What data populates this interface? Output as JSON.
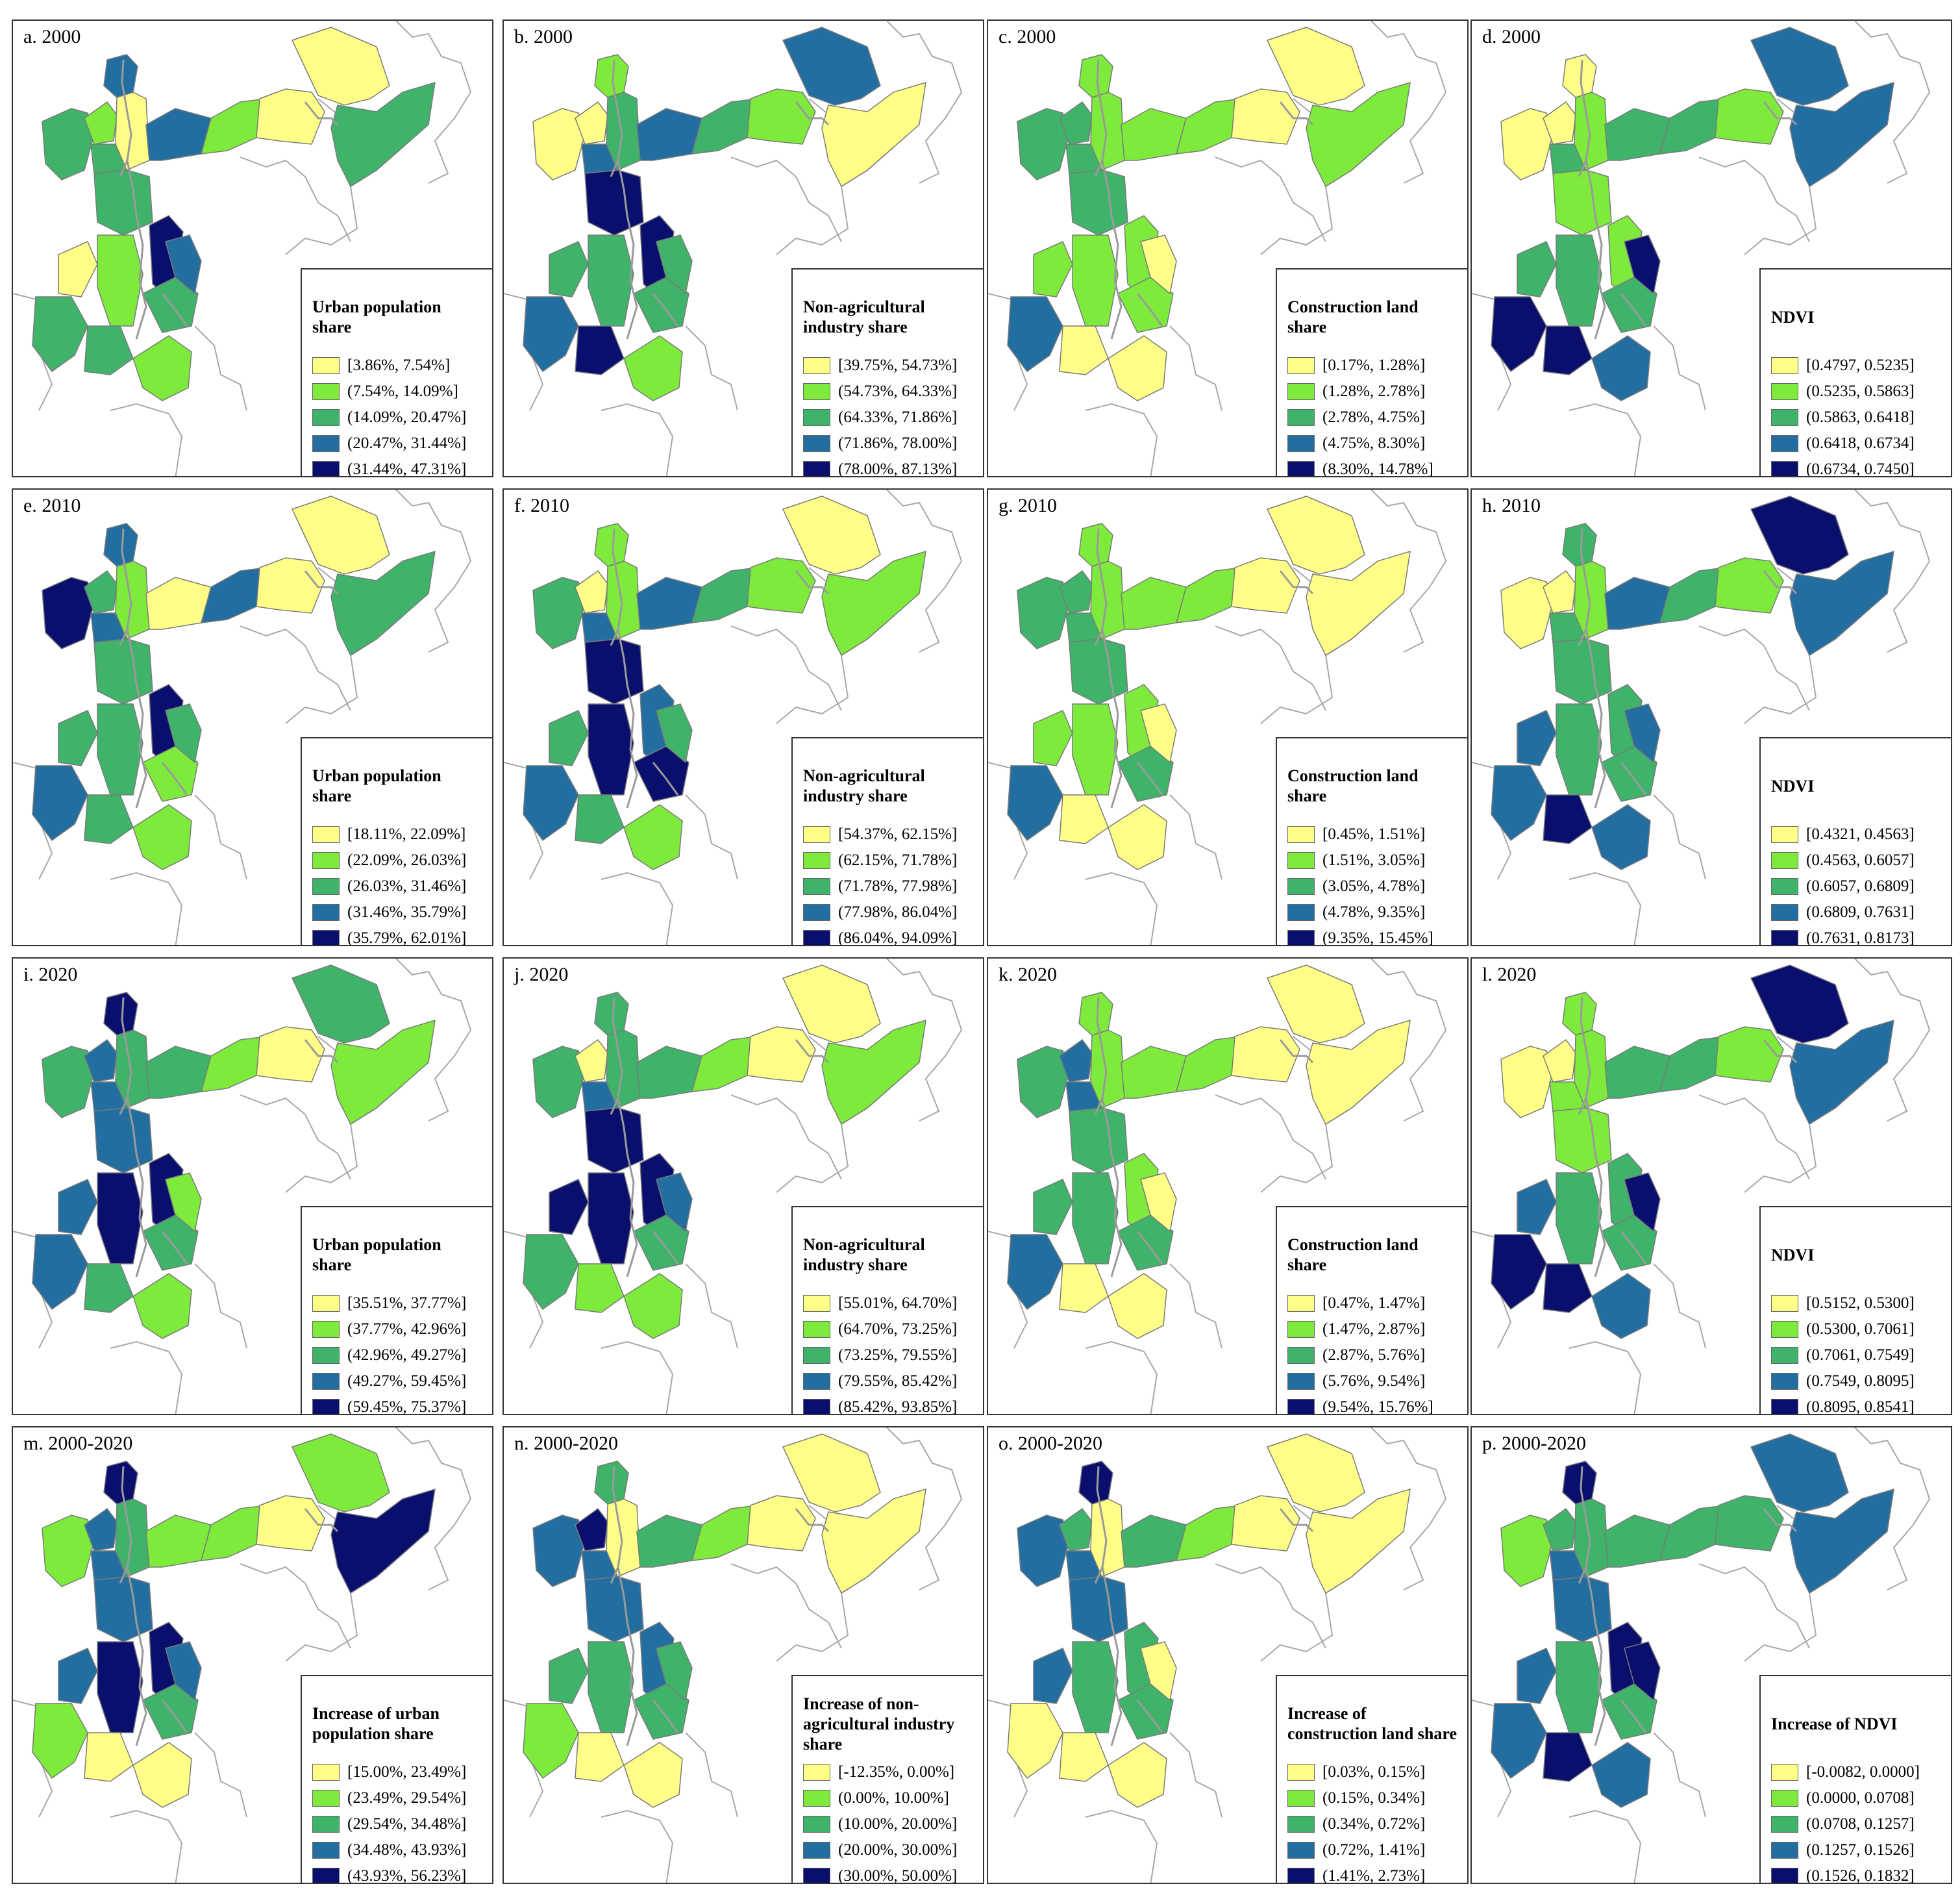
{
  "colors": [
    "#ffff88",
    "#7dea3c",
    "#3fb36a",
    "#236ea0",
    "#0a0f6e"
  ],
  "panels": [
    {
      "label": "a. 2000",
      "legend_title": "Urban population share",
      "classes": [
        "[3.86%, 7.54%]",
        "(7.54%, 14.09%]",
        "(14.09%, 20.47%]",
        "(20.47%, 31.44%]",
        "(31.44%, 47.31%]"
      ]
    },
    {
      "label": "b. 2000",
      "legend_title": "Non-agricultural industry share",
      "classes": [
        "[39.75%, 54.73%]",
        "(54.73%, 64.33%]",
        "(64.33%, 71.86%]",
        "(71.86%, 78.00%]",
        "(78.00%, 87.13%]"
      ]
    },
    {
      "label": "c. 2000",
      "legend_title": "Construction land share",
      "classes": [
        "[0.17%, 1.28%]",
        "(1.28%, 2.78%]",
        "(2.78%, 4.75%]",
        "(4.75%, 8.30%]",
        "(8.30%, 14.78%]"
      ]
    },
    {
      "label": "d. 2000",
      "legend_title": "NDVI",
      "classes": [
        "[0.4797, 0.5235]",
        "(0.5235, 0.5863]",
        "(0.5863, 0.6418]",
        "(0.6418, 0.6734]",
        "(0.6734, 0.7450]"
      ]
    },
    {
      "label": "e. 2010",
      "legend_title": "Urban population share",
      "classes": [
        "[18.11%, 22.09%]",
        "(22.09%, 26.03%]",
        "(26.03%, 31.46%]",
        "(31.46%, 35.79%]",
        "(35.79%, 62.01%]"
      ]
    },
    {
      "label": "f. 2010",
      "legend_title": "Non-agricultural industry share",
      "classes": [
        "[54.37%, 62.15%]",
        "(62.15%, 71.78%]",
        "(71.78%, 77.98%]",
        "(77.98%, 86.04%]",
        "(86.04%, 94.09%]"
      ]
    },
    {
      "label": "g. 2010",
      "legend_title": "Construction land share",
      "classes": [
        "[0.45%, 1.51%]",
        "(1.51%, 3.05%]",
        "(3.05%, 4.78%]",
        "(4.78%, 9.35%]",
        "(9.35%, 15.45%]"
      ]
    },
    {
      "label": "h. 2010",
      "legend_title": "NDVI",
      "classes": [
        "[0.4321, 0.4563]",
        "(0.4563, 0.6057]",
        "(0.6057, 0.6809]",
        "(0.6809, 0.7631]",
        "(0.7631, 0.8173]"
      ]
    },
    {
      "label": "i. 2020",
      "legend_title": "Urban population share",
      "classes": [
        "[35.51%, 37.77%]",
        "(37.77%, 42.96%]",
        "(42.96%, 49.27%]",
        "(49.27%, 59.45%]",
        "(59.45%, 75.37%]"
      ]
    },
    {
      "label": "j. 2020",
      "legend_title": "Non-agricultural industry share",
      "classes": [
        "[55.01%, 64.70%]",
        "(64.70%, 73.25%]",
        "(73.25%, 79.55%]",
        "(79.55%, 85.42%]",
        "(85.42%, 93.85%]"
      ]
    },
    {
      "label": "k. 2020",
      "legend_title": "Construction land share",
      "classes": [
        "[0.47%, 1.47%]",
        "(1.47%, 2.87%]",
        "(2.87%, 5.76%]",
        "(5.76%, 9.54%]",
        "(9.54%, 15.76%]"
      ]
    },
    {
      "label": "l. 2020",
      "legend_title": "NDVI",
      "classes": [
        "[0.5152, 0.5300]",
        "(0.5300, 0.7061]",
        "(0.7061, 0.7549]",
        "(0.7549, 0.8095]",
        "(0.8095, 0.8541]"
      ]
    },
    {
      "label": "m. 2000-2020",
      "legend_title": "Increase of urban population share",
      "classes": [
        "[15.00%, 23.49%]",
        "(23.49%, 29.54%]",
        "(29.54%, 34.48%]",
        "(34.48%, 43.93%]",
        "(43.93%, 56.23%]"
      ]
    },
    {
      "label": "n. 2000-2020",
      "legend_title": "Increase of non-agricultural industry share",
      "classes": [
        "[-12.35%, 0.00%]",
        "(0.00%, 10.00%]",
        "(10.00%, 20.00%]",
        "(20.00%, 30.00%]",
        "(30.00%, 50.00%]"
      ]
    },
    {
      "label": "o. 2000-2020",
      "legend_title": "Increase of construction land share",
      "classes": [
        "[0.03%, 0.15%]",
        "(0.15%, 0.34%]",
        "(0.34%, 0.72%]",
        "(0.72%, 1.41%]",
        "(1.41%, 2.73%]"
      ]
    },
    {
      "label": "p. 2000-2020",
      "legend_title": "Increase of NDVI",
      "classes": [
        "[-0.0082, 0.0000]",
        "(0.0000, 0.0708]",
        "(0.0708, 0.1257]",
        "(0.1257, 0.1526]",
        "(0.1526, 0.1832]"
      ]
    }
  ],
  "region_classes": [
    [
      2,
      1,
      0,
      3,
      4,
      2,
      2,
      3,
      1,
      0,
      0,
      1,
      2,
      3,
      2,
      2,
      1,
      0,
      2
    ],
    [
      0,
      0,
      2,
      1,
      4,
      4,
      3,
      3,
      2,
      1,
      2,
      2,
      2,
      2,
      3,
      4,
      1,
      3,
      0
    ],
    [
      2,
      2,
      1,
      1,
      1,
      2,
      2,
      1,
      1,
      0,
      1,
      1,
      1,
      0,
      3,
      0,
      0,
      0,
      1
    ],
    [
      0,
      0,
      1,
      0,
      1,
      1,
      2,
      2,
      2,
      1,
      2,
      2,
      2,
      4,
      4,
      4,
      3,
      3,
      3
    ],
    [
      4,
      2,
      1,
      3,
      4,
      2,
      3,
      0,
      3,
      0,
      2,
      2,
      1,
      2,
      3,
      2,
      1,
      0,
      2
    ],
    [
      2,
      0,
      1,
      1,
      3,
      4,
      3,
      3,
      2,
      1,
      2,
      4,
      4,
      2,
      3,
      2,
      1,
      0,
      1
    ],
    [
      2,
      2,
      1,
      1,
      1,
      2,
      2,
      1,
      1,
      0,
      1,
      1,
      2,
      0,
      3,
      0,
      0,
      0,
      0
    ],
    [
      0,
      0,
      1,
      2,
      2,
      2,
      2,
      3,
      2,
      1,
      3,
      2,
      2,
      3,
      3,
      4,
      3,
      4,
      3
    ],
    [
      2,
      3,
      2,
      4,
      4,
      3,
      3,
      2,
      1,
      0,
      3,
      4,
      2,
      1,
      3,
      2,
      1,
      2,
      1
    ],
    [
      2,
      0,
      2,
      2,
      4,
      4,
      3,
      2,
      1,
      0,
      4,
      4,
      2,
      3,
      2,
      1,
      1,
      0,
      1
    ],
    [
      2,
      3,
      1,
      1,
      1,
      2,
      3,
      1,
      1,
      0,
      2,
      2,
      2,
      0,
      3,
      0,
      0,
      0,
      0
    ],
    [
      0,
      0,
      1,
      1,
      2,
      1,
      1,
      2,
      2,
      1,
      3,
      2,
      2,
      4,
      4,
      4,
      3,
      4,
      3
    ],
    [
      1,
      3,
      2,
      4,
      4,
      3,
      3,
      1,
      1,
      0,
      3,
      4,
      2,
      3,
      1,
      0,
      0,
      1,
      4
    ],
    [
      3,
      4,
      0,
      2,
      3,
      3,
      3,
      2,
      1,
      0,
      2,
      2,
      2,
      2,
      1,
      0,
      0,
      0,
      0
    ],
    [
      3,
      2,
      0,
      4,
      2,
      3,
      3,
      2,
      1,
      0,
      3,
      2,
      2,
      0,
      0,
      0,
      0,
      0,
      0
    ],
    [
      1,
      2,
      2,
      4,
      4,
      3,
      3,
      2,
      2,
      2,
      3,
      2,
      2,
      4,
      3,
      4,
      3,
      3,
      3
    ]
  ]
}
